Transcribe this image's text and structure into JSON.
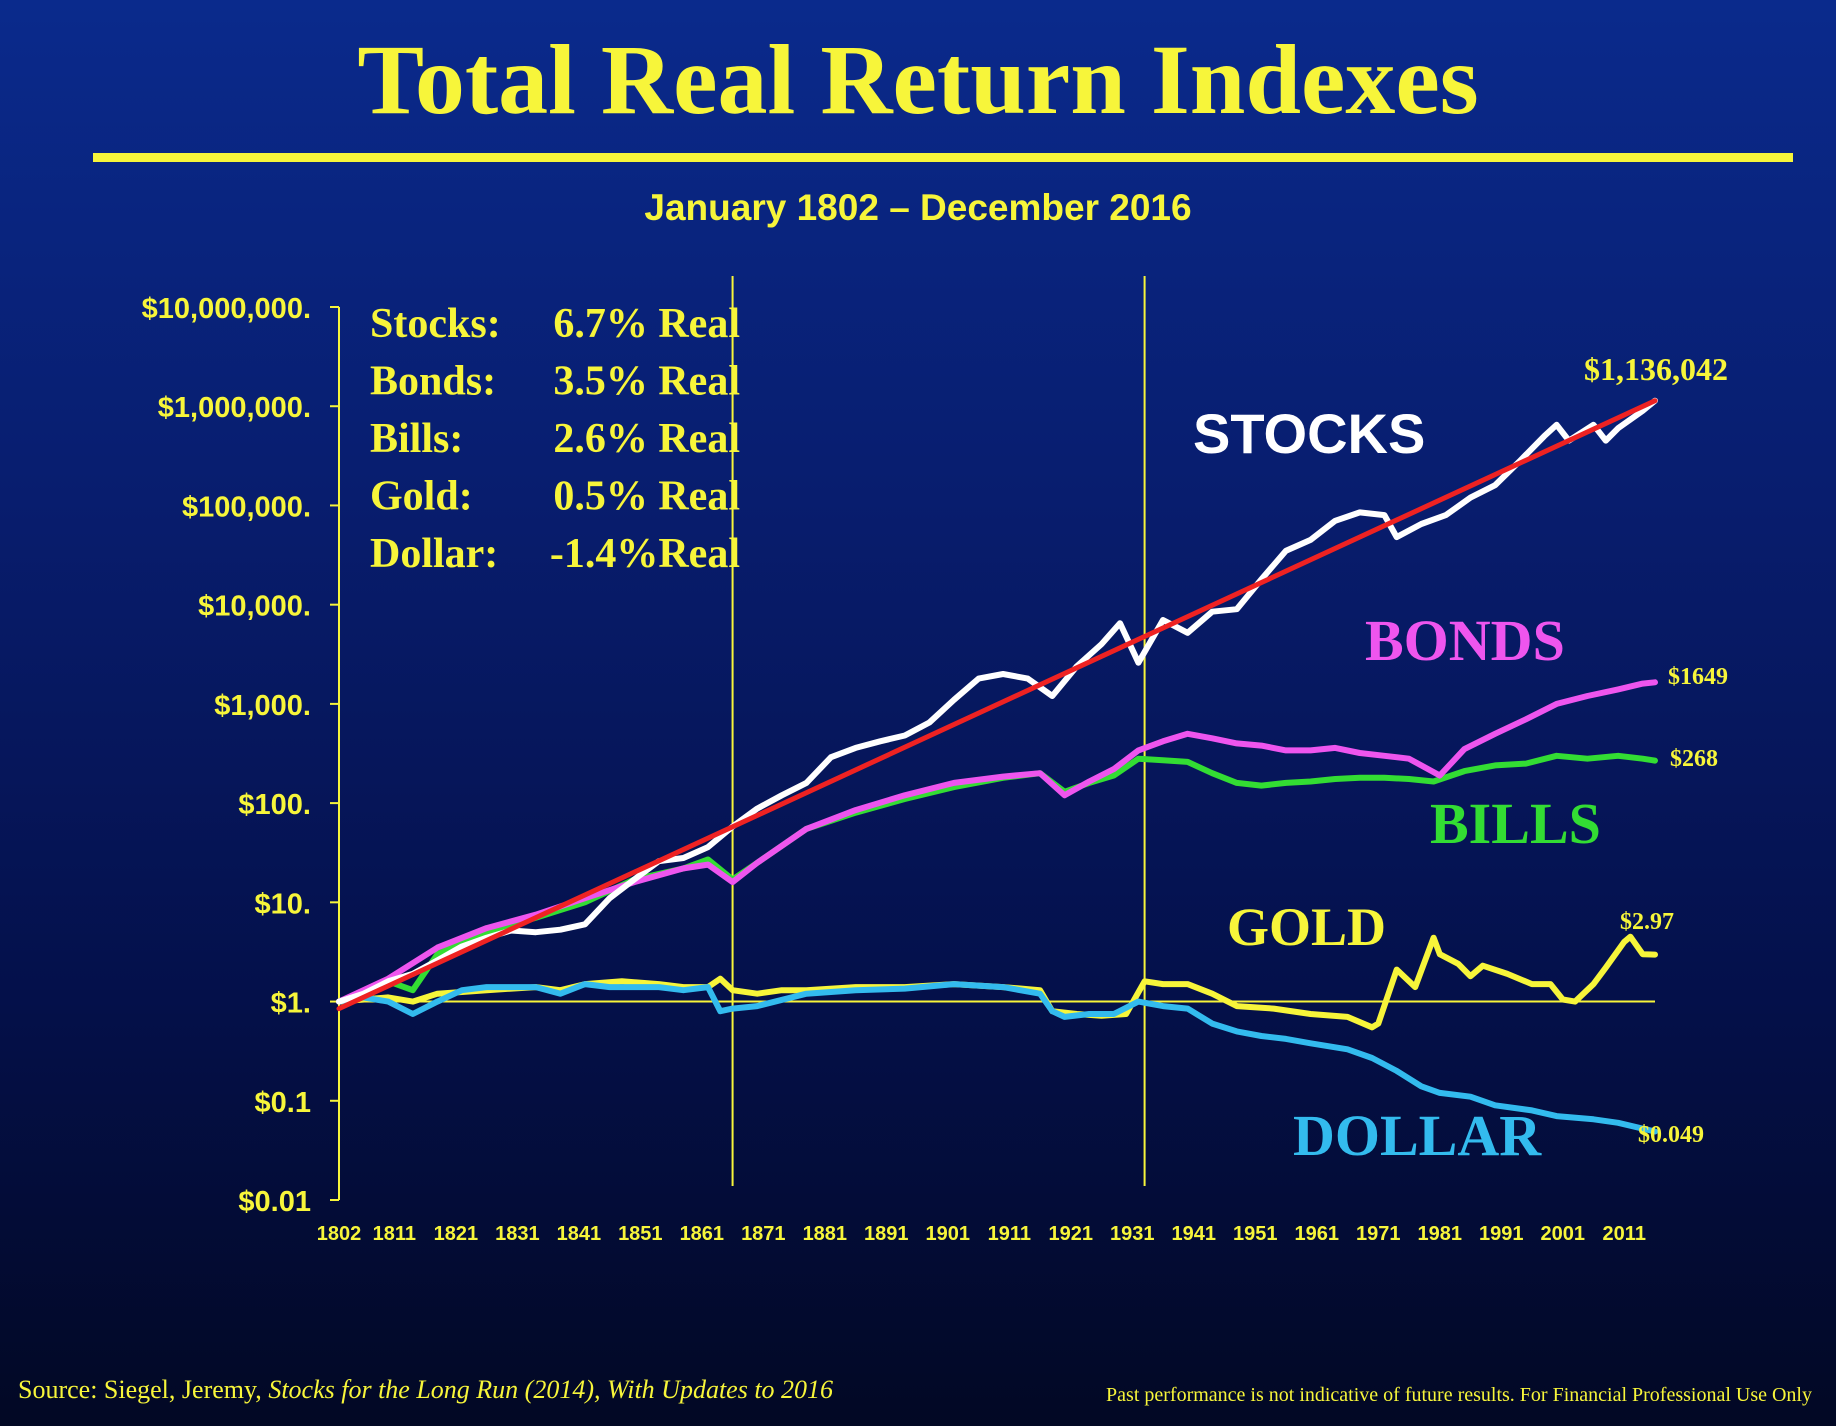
{
  "slide": {
    "title": "Total Real Return Indexes",
    "subtitle": "January 1802 – December 2016",
    "source_prefix": "Source: Siegel, Jeremy, ",
    "source_italic": "Stocks for the Long Run (2014), With Updates to 2016",
    "disclaimer": "Past performance is not indicative of future results.  For Financial Professional Use Only"
  },
  "colors": {
    "accent": "#f7f53a",
    "stocks": "#ffffff",
    "bonds": "#ee55ee",
    "bills": "#33dd33",
    "gold": "#f7f53a",
    "dollar": "#33bbee",
    "trend": "#ee2222"
  },
  "chart_data": {
    "type": "line",
    "y_scale": "log",
    "ylim": [
      0.01,
      10000000
    ],
    "xlim": [
      1802,
      2016
    ],
    "y_tick_labels": [
      {
        "value": 10000000,
        "label": "$10,000,000."
      },
      {
        "value": 1000000,
        "label": "$1,000,000."
      },
      {
        "value": 100000,
        "label": "$100,000."
      },
      {
        "value": 10000,
        "label": "$10,000."
      },
      {
        "value": 1000,
        "label": "$1,000."
      },
      {
        "value": 100,
        "label": "$100."
      },
      {
        "value": 10,
        "label": "$10."
      },
      {
        "value": 1,
        "label": "$1."
      },
      {
        "value": 0.1,
        "label": "$0.1"
      },
      {
        "value": 0.01,
        "label": "$0.01"
      }
    ],
    "x_tick_labels": [
      "1802",
      "1811",
      "1821",
      "1831",
      "1841",
      "1851",
      "1861",
      "1871",
      "1881",
      "1891",
      "1901",
      "1911",
      "1921",
      "1931",
      "1941",
      "1951",
      "1961",
      "1971",
      "1981",
      "1991",
      "2001",
      "2011"
    ],
    "x_tick_values": [
      1802,
      1811,
      1821,
      1831,
      1841,
      1851,
      1861,
      1871,
      1881,
      1891,
      1901,
      1911,
      1921,
      1931,
      1941,
      1951,
      1961,
      1971,
      1981,
      1991,
      2001,
      2011
    ],
    "vertical_markers": [
      1866,
      1933
    ],
    "reference_line": 1,
    "stats_box": [
      {
        "label": "Stocks:",
        "value": "6.7% Real"
      },
      {
        "label": "Bonds:",
        "value": "3.5% Real"
      },
      {
        "label": "Bills:",
        "value": "2.6% Real"
      },
      {
        "label": "Gold:",
        "value": "0.5% Real"
      },
      {
        "label": "Dollar:",
        "value": "-1.4%Real"
      }
    ],
    "series": [
      {
        "name": "STOCKS",
        "key": "stocks",
        "end_label": "$1,136,042",
        "x": [
          1802,
          1806,
          1810,
          1814,
          1818,
          1822,
          1826,
          1830,
          1834,
          1838,
          1842,
          1846,
          1850,
          1854,
          1858,
          1862,
          1866,
          1870,
          1874,
          1878,
          1882,
          1886,
          1890,
          1894,
          1898,
          1902,
          1906,
          1910,
          1914,
          1918,
          1922,
          1926,
          1929,
          1932,
          1936,
          1940,
          1944,
          1948,
          1952,
          1956,
          1960,
          1964,
          1968,
          1972,
          1974,
          1978,
          1982,
          1986,
          1990,
          1994,
          1998,
          2000,
          2002,
          2006,
          2008,
          2010,
          2014,
          2016
        ],
        "y": [
          1.0,
          1.2,
          1.6,
          1.9,
          2.6,
          3.6,
          4.4,
          5.2,
          5.0,
          5.3,
          6.0,
          11,
          17,
          26,
          28,
          36,
          58,
          88,
          120,
          160,
          290,
          360,
          420,
          480,
          650,
          1100,
          1800,
          2000,
          1800,
          1200,
          2400,
          4000,
          6500,
          2600,
          7000,
          5200,
          8500,
          9000,
          18000,
          35000,
          45000,
          70000,
          85000,
          80000,
          48000,
          65000,
          80000,
          120000,
          160000,
          280000,
          500000,
          650000,
          450000,
          650000,
          450000,
          600000,
          900000,
          1136042
        ]
      },
      {
        "name": "BONDS",
        "key": "bonds",
        "end_label": "$1649",
        "x": [
          1802,
          1810,
          1818,
          1826,
          1834,
          1842,
          1850,
          1858,
          1862,
          1866,
          1870,
          1878,
          1886,
          1894,
          1902,
          1910,
          1916,
          1920,
          1924,
          1928,
          1932,
          1936,
          1940,
          1944,
          1948,
          1952,
          1956,
          1960,
          1964,
          1968,
          1972,
          1976,
          1981,
          1985,
          1990,
          1995,
          2000,
          2005,
          2010,
          2014,
          2016
        ],
        "y": [
          1.0,
          1.7,
          3.5,
          5.5,
          7.5,
          11,
          16,
          22,
          24,
          16,
          25,
          55,
          85,
          120,
          160,
          185,
          200,
          120,
          165,
          220,
          340,
          420,
          500,
          450,
          400,
          380,
          340,
          340,
          360,
          320,
          300,
          280,
          190,
          350,
          500,
          700,
          1000,
          1200,
          1400,
          1600,
          1649
        ]
      },
      {
        "name": "BILLS",
        "key": "bills",
        "end_label": "$268",
        "x": [
          1802,
          1810,
          1814,
          1818,
          1826,
          1834,
          1842,
          1850,
          1858,
          1862,
          1866,
          1870,
          1878,
          1886,
          1894,
          1902,
          1910,
          1916,
          1920,
          1924,
          1928,
          1932,
          1936,
          1940,
          1944,
          1948,
          1952,
          1956,
          1960,
          1964,
          1968,
          1972,
          1976,
          1980,
          1985,
          1990,
          1995,
          2000,
          2005,
          2010,
          2014,
          2016
        ],
        "y": [
          1.0,
          1.6,
          1.3,
          3.0,
          5.0,
          7.0,
          10,
          17,
          22,
          27,
          17,
          25,
          55,
          80,
          110,
          145,
          180,
          200,
          130,
          160,
          190,
          280,
          270,
          260,
          200,
          160,
          150,
          160,
          165,
          175,
          180,
          180,
          175,
          165,
          210,
          240,
          250,
          300,
          280,
          300,
          280,
          268
        ]
      },
      {
        "name": "GOLD",
        "key": "gold",
        "end_label": "$2.97",
        "x": [
          1802,
          1810,
          1814,
          1818,
          1826,
          1834,
          1838,
          1842,
          1848,
          1854,
          1858,
          1862,
          1864,
          1866,
          1870,
          1874,
          1878,
          1886,
          1894,
          1902,
          1910,
          1916,
          1918,
          1922,
          1926,
          1930,
          1933,
          1936,
          1940,
          1944,
          1948,
          1954,
          1960,
          1966,
          1970,
          1971,
          1974,
          1977,
          1980,
          1981,
          1984,
          1986,
          1988,
          1992,
          1996,
          1999,
          2001,
          2003,
          2006,
          2008,
          2011,
          2012,
          2014,
          2016
        ],
        "y": [
          1.0,
          1.1,
          1.0,
          1.2,
          1.3,
          1.4,
          1.3,
          1.5,
          1.6,
          1.5,
          1.4,
          1.4,
          1.7,
          1.3,
          1.2,
          1.3,
          1.3,
          1.4,
          1.4,
          1.5,
          1.4,
          1.3,
          0.8,
          0.75,
          0.72,
          0.75,
          1.6,
          1.5,
          1.5,
          1.2,
          0.9,
          0.85,
          0.75,
          0.7,
          0.55,
          0.6,
          2.1,
          1.4,
          4.4,
          3.0,
          2.4,
          1.8,
          2.3,
          1.9,
          1.5,
          1.5,
          1.05,
          1.0,
          1.5,
          2.2,
          4.0,
          4.5,
          3.0,
          2.97
        ]
      },
      {
        "name": "DOLLAR",
        "key": "dollar",
        "end_label": "$0.049",
        "x": [
          1802,
          1806,
          1810,
          1814,
          1818,
          1822,
          1826,
          1830,
          1834,
          1838,
          1842,
          1846,
          1850,
          1854,
          1858,
          1862,
          1864,
          1866,
          1870,
          1878,
          1886,
          1894,
          1902,
          1910,
          1916,
          1918,
          1920,
          1924,
          1928,
          1932,
          1936,
          1940,
          1944,
          1948,
          1952,
          1956,
          1960,
          1966,
          1970,
          1974,
          1978,
          1981,
          1986,
          1990,
          1996,
          2000,
          2006,
          2010,
          2016
        ],
        "y": [
          1.0,
          1.1,
          1.0,
          0.75,
          1.0,
          1.3,
          1.4,
          1.4,
          1.4,
          1.2,
          1.5,
          1.4,
          1.4,
          1.4,
          1.3,
          1.4,
          0.8,
          0.85,
          0.9,
          1.2,
          1.3,
          1.35,
          1.5,
          1.4,
          1.2,
          0.8,
          0.7,
          0.75,
          0.75,
          1.0,
          0.9,
          0.85,
          0.6,
          0.5,
          0.45,
          0.42,
          0.38,
          0.33,
          0.27,
          0.2,
          0.14,
          0.12,
          0.11,
          0.09,
          0.08,
          0.07,
          0.065,
          0.06,
          0.049
        ]
      },
      {
        "name": "",
        "key": "trend",
        "x": [
          1802,
          2016
        ],
        "y": [
          0.85,
          1136042
        ]
      }
    ]
  }
}
